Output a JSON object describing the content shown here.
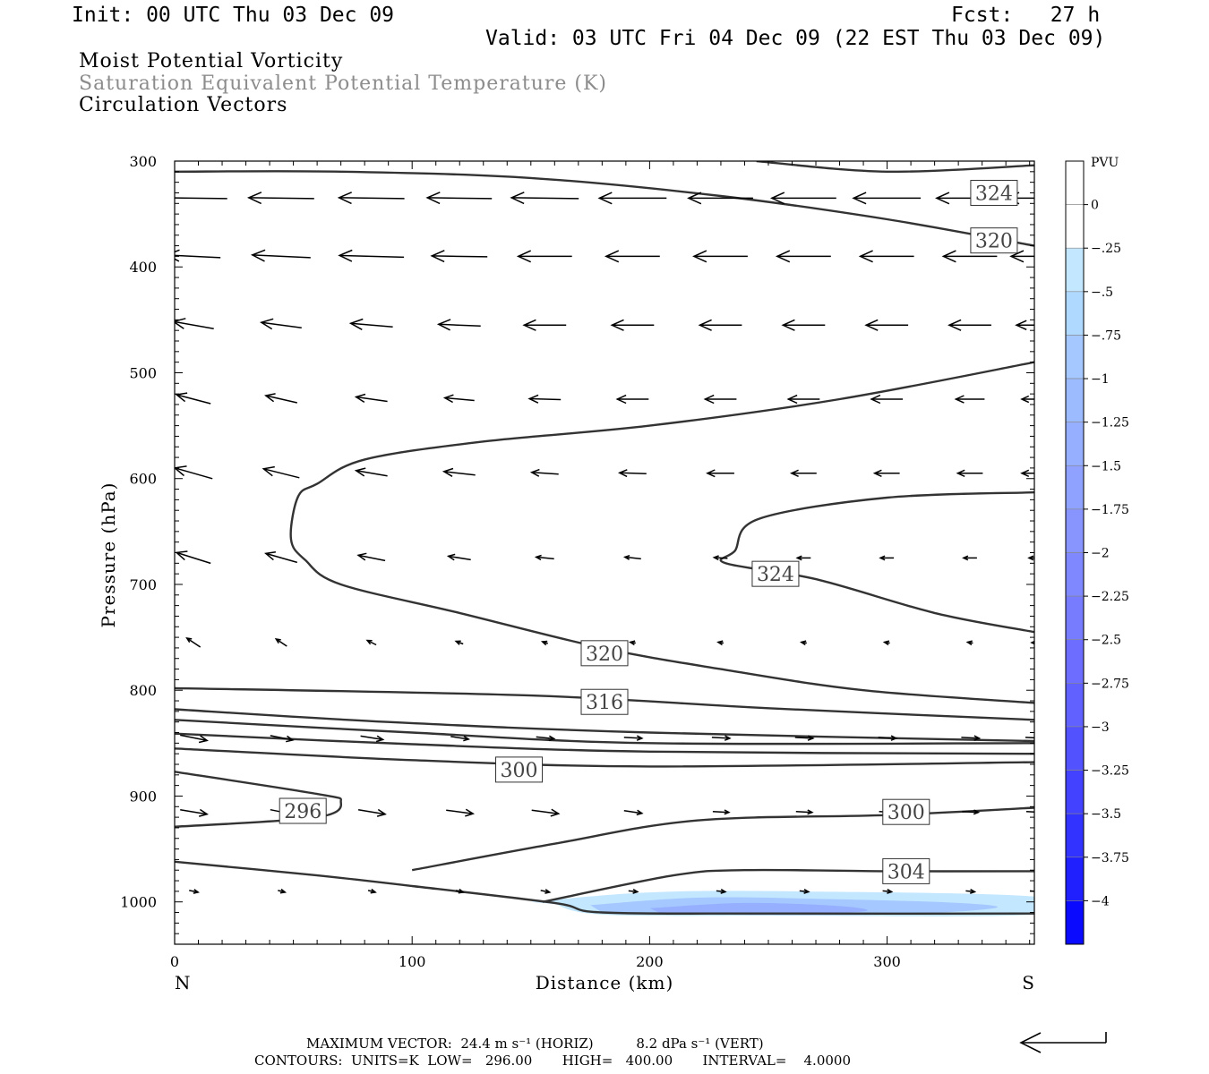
{
  "header": {
    "init": "Init: 00 UTC Thu 03 Dec 09",
    "fcst": "Fcst:   27 h",
    "valid": "Valid: 03 UTC Fri 04 Dec 09 (22 EST Thu 03 Dec 09)"
  },
  "fields": {
    "line1": "Moist Potential Vorticity",
    "line2": "Saturation Equivalent Potential Temperature (K)",
    "line3": "Circulation Vectors"
  },
  "colors": {
    "field2_text": "#8c8c8c",
    "contour": "#333333",
    "vector": "#000000"
  },
  "footer": {
    "line1": "MAXIMUM VECTOR:  24.4 m s⁻¹ (HORIZ)          8.2 dPa s⁻¹ (VERT)",
    "line2": "CONTOURS:  UNITS=K  LOW=   296.00       HIGH=   400.00       INTERVAL=    4.0000"
  },
  "chart_data": {
    "type": "cross-section",
    "xlabel": "Distance (km)",
    "ylabel": "Pressure (hPa)",
    "xlim": [
      0,
      362
    ],
    "ylim": [
      1040,
      300
    ],
    "x_ticks": [
      0,
      100,
      200,
      300
    ],
    "y_ticks": [
      300,
      400,
      500,
      600,
      700,
      800,
      900,
      1000
    ],
    "endpoint_left": "N",
    "endpoint_right": "S",
    "colorbar": {
      "unit": "PVU",
      "levels": [
        "0",
        "-.25",
        "-.5",
        "-.75",
        "-1",
        "-1.25",
        "-1.5",
        "-1.75",
        "-2",
        "-2.25",
        "-2.5",
        "-2.75",
        "-3",
        "-3.25",
        "-3.5",
        "-3.75",
        "-4"
      ],
      "colors": [
        "#ffffff",
        "#c3e7ff",
        "#b0d9ff",
        "#a4c8ff",
        "#9cbbff",
        "#96afff",
        "#8fa2ff",
        "#8895ff",
        "#8088ff",
        "#777cff",
        "#6d6eff",
        "#6161ff",
        "#5252ff",
        "#4343ff",
        "#3333ff",
        "#2020ff",
        "#0a0aff"
      ]
    },
    "theta_es_contours": [
      {
        "level": 324,
        "label": "324",
        "label_at": [
          345,
          330
        ],
        "points": [
          [
            245,
            300
          ],
          [
            300,
            310
          ],
          [
            362,
            304
          ]
        ]
      },
      {
        "level": 320,
        "label": "320",
        "label_at": [
          345,
          375
        ],
        "points": [
          [
            0,
            310
          ],
          [
            70,
            310
          ],
          [
            150,
            316
          ],
          [
            230,
            333
          ],
          [
            300,
            355
          ],
          [
            362,
            380
          ]
        ]
      },
      {
        "level": 324,
        "label": "324",
        "label_at": [
          253,
          690
        ],
        "points": [
          [
            362,
            613
          ],
          [
            300,
            618
          ],
          [
            246,
            638
          ],
          [
            236,
            668
          ],
          [
            232,
            680
          ],
          [
            270,
            695
          ],
          [
            320,
            727
          ],
          [
            362,
            745
          ]
        ]
      },
      {
        "level": 320,
        "label": "320",
        "label_at": [
          181,
          765
        ],
        "points": [
          [
            362,
            490
          ],
          [
            280,
            525
          ],
          [
            200,
            550
          ],
          [
            130,
            565
          ],
          [
            80,
            582
          ],
          [
            60,
            605
          ],
          [
            52,
            617
          ],
          [
            49,
            657
          ],
          [
            55,
            677
          ],
          [
            70,
            700
          ],
          [
            120,
            727
          ],
          [
            180,
            760
          ],
          [
            230,
            780
          ],
          [
            290,
            800
          ],
          [
            362,
            812
          ]
        ]
      },
      {
        "level": 316,
        "label": "316",
        "label_at": [
          181,
          811
        ],
        "points": [
          [
            0,
            798
          ],
          [
            150,
            805
          ],
          [
            250,
            817
          ],
          [
            362,
            828
          ]
        ]
      },
      {
        "level": 312,
        "label": "",
        "label_at": null,
        "points": [
          [
            0,
            818
          ],
          [
            90,
            830
          ],
          [
            200,
            840
          ],
          [
            362,
            848
          ]
        ]
      },
      {
        "level": 308,
        "label": "",
        "label_at": null,
        "points": [
          [
            0,
            828
          ],
          [
            100,
            840
          ],
          [
            200,
            850
          ],
          [
            362,
            850
          ]
        ]
      },
      {
        "level": 304,
        "label": "",
        "label_at": null,
        "points": [
          [
            0,
            841
          ],
          [
            100,
            851
          ],
          [
            200,
            858
          ],
          [
            362,
            860
          ]
        ]
      },
      {
        "level": 300,
        "label": "300",
        "label_at": [
          145,
          875
        ],
        "points": [
          [
            0,
            855
          ],
          [
            100,
            866
          ],
          [
            200,
            872
          ],
          [
            362,
            868
          ]
        ]
      },
      {
        "level": 296,
        "label": "296",
        "label_at": [
          54,
          914
        ],
        "points": [
          [
            0,
            877
          ],
          [
            60,
            898
          ],
          [
            70,
            905
          ],
          [
            60,
            920
          ],
          [
            0,
            929
          ]
        ]
      },
      {
        "level": 300,
        "label": "300",
        "label_at": [
          308,
          915
        ],
        "points": [
          [
            100,
            970
          ],
          [
            160,
            945
          ],
          [
            220,
            923
          ],
          [
            300,
            918
          ],
          [
            362,
            911
          ]
        ]
      },
      {
        "level": 304,
        "label": "304",
        "label_at": [
          308,
          971
        ],
        "points": [
          [
            155,
            1000
          ],
          [
            210,
            975
          ],
          [
            240,
            970
          ],
          [
            300,
            971
          ],
          [
            362,
            971
          ]
        ]
      },
      {
        "level": 0,
        "label": "",
        "label_at": null,
        "points": [
          [
            0,
            962
          ],
          [
            60,
            975
          ],
          [
            100,
            985
          ],
          [
            160,
            1001
          ],
          [
            180,
            1010
          ],
          [
            250,
            1011
          ],
          [
            362,
            1011
          ]
        ]
      }
    ],
    "pv_fill": [
      {
        "value": "-.25",
        "points": [
          [
            150,
            1000
          ],
          [
            200,
            991
          ],
          [
            260,
            990
          ],
          [
            362,
            995
          ],
          [
            362,
            1012
          ],
          [
            250,
            1013
          ],
          [
            180,
            1012
          ],
          [
            160,
            1002
          ]
        ]
      },
      {
        "value": "-.75",
        "points": [
          [
            175,
            1003
          ],
          [
            220,
            996
          ],
          [
            270,
            997
          ],
          [
            330,
            1001
          ],
          [
            345,
            1006
          ],
          [
            300,
            1012
          ],
          [
            220,
            1012
          ],
          [
            180,
            1010
          ]
        ]
      },
      {
        "value": "-1.25",
        "points": [
          [
            200,
            1006
          ],
          [
            240,
            1001
          ],
          [
            280,
            1004
          ],
          [
            290,
            1009
          ],
          [
            250,
            1012
          ],
          [
            205,
            1011
          ]
        ]
      }
    ],
    "vectors": {
      "columns_km": [
        8,
        45,
        83,
        120,
        156,
        193,
        230,
        265,
        300,
        335,
        362
      ],
      "rows": [
        {
          "p": 335,
          "u": [
            -75,
            -73,
            -73,
            -72,
            -75,
            -75,
            -72,
            -72,
            -75,
            -75,
            -62
          ]
        },
        {
          "p": 390,
          "u": [
            -60,
            -65,
            -72,
            -62,
            -60,
            -60,
            -60,
            -60,
            -60,
            -60,
            -52
          ]
        },
        {
          "p": 455,
          "u": [
            -45,
            -45,
            -47,
            -47,
            -47,
            -47,
            -47,
            -47,
            -47,
            -47,
            -40
          ]
        },
        {
          "p": 525,
          "u": [
            -38,
            -35,
            -35,
            -33,
            -35,
            -35,
            -35,
            -35,
            -35,
            -32,
            -28
          ]
        },
        {
          "p": 595,
          "u": [
            -42,
            -40,
            -35,
            -35,
            -30,
            -30,
            -30,
            -28,
            -28,
            -28,
            -28
          ]
        },
        {
          "p": 675,
          "u": [
            -38,
            -35,
            -30,
            -25,
            -20,
            -18,
            -15,
            -15,
            -15,
            -15,
            -12
          ]
        },
        {
          "p": 755,
          "u": [
            -15,
            -12,
            -10,
            -8,
            -6,
            -6,
            -6,
            -6,
            -6,
            -6,
            -6
          ]
        },
        {
          "p": 845,
          "u": [
            30,
            25,
            25,
            20,
            20,
            20,
            20,
            20,
            20,
            20,
            20
          ]
        },
        {
          "p": 915,
          "u": [
            30,
            25,
            30,
            30,
            30,
            20,
            18,
            18,
            18,
            18,
            18
          ]
        },
        {
          "p": 990,
          "u": [
            10,
            8,
            8,
            8,
            10,
            10,
            10,
            10,
            10,
            10,
            10
          ]
        }
      ],
      "vertical_component": [
        {
          "p": 335,
          "w": [
            1,
            1,
            1,
            1,
            1,
            0,
            0,
            0,
            0,
            0,
            0
          ]
        },
        {
          "p": 390,
          "w": [
            3,
            3,
            2,
            1,
            0,
            0,
            0,
            0,
            0,
            0,
            0
          ]
        },
        {
          "p": 455,
          "w": [
            8,
            6,
            4,
            2,
            0,
            0,
            0,
            0,
            0,
            0,
            0
          ]
        },
        {
          "p": 525,
          "w": [
            10,
            8,
            5,
            3,
            1,
            0,
            0,
            0,
            0,
            0,
            0
          ]
        },
        {
          "p": 595,
          "w": [
            12,
            10,
            6,
            4,
            2,
            1,
            0,
            0,
            0,
            0,
            0
          ]
        },
        {
          "p": 675,
          "w": [
            12,
            10,
            6,
            4,
            2,
            2,
            1,
            0,
            0,
            0,
            0
          ]
        },
        {
          "p": 755,
          "w": [
            10,
            8,
            5,
            3,
            2,
            1,
            1,
            1,
            1,
            1,
            0
          ]
        },
        {
          "p": 845,
          "w": [
            -6,
            -5,
            -4,
            -3,
            -2,
            -1,
            -1,
            -1,
            -1,
            -1,
            -1
          ]
        },
        {
          "p": 915,
          "w": [
            -5,
            -5,
            -5,
            -4,
            -4,
            -3,
            -1,
            -1,
            -1,
            -1,
            -1
          ]
        },
        {
          "p": 990,
          "w": [
            -2,
            -2,
            -2,
            -2,
            -2,
            -1,
            -1,
            -1,
            -1,
            -1,
            -1
          ]
        }
      ]
    }
  }
}
